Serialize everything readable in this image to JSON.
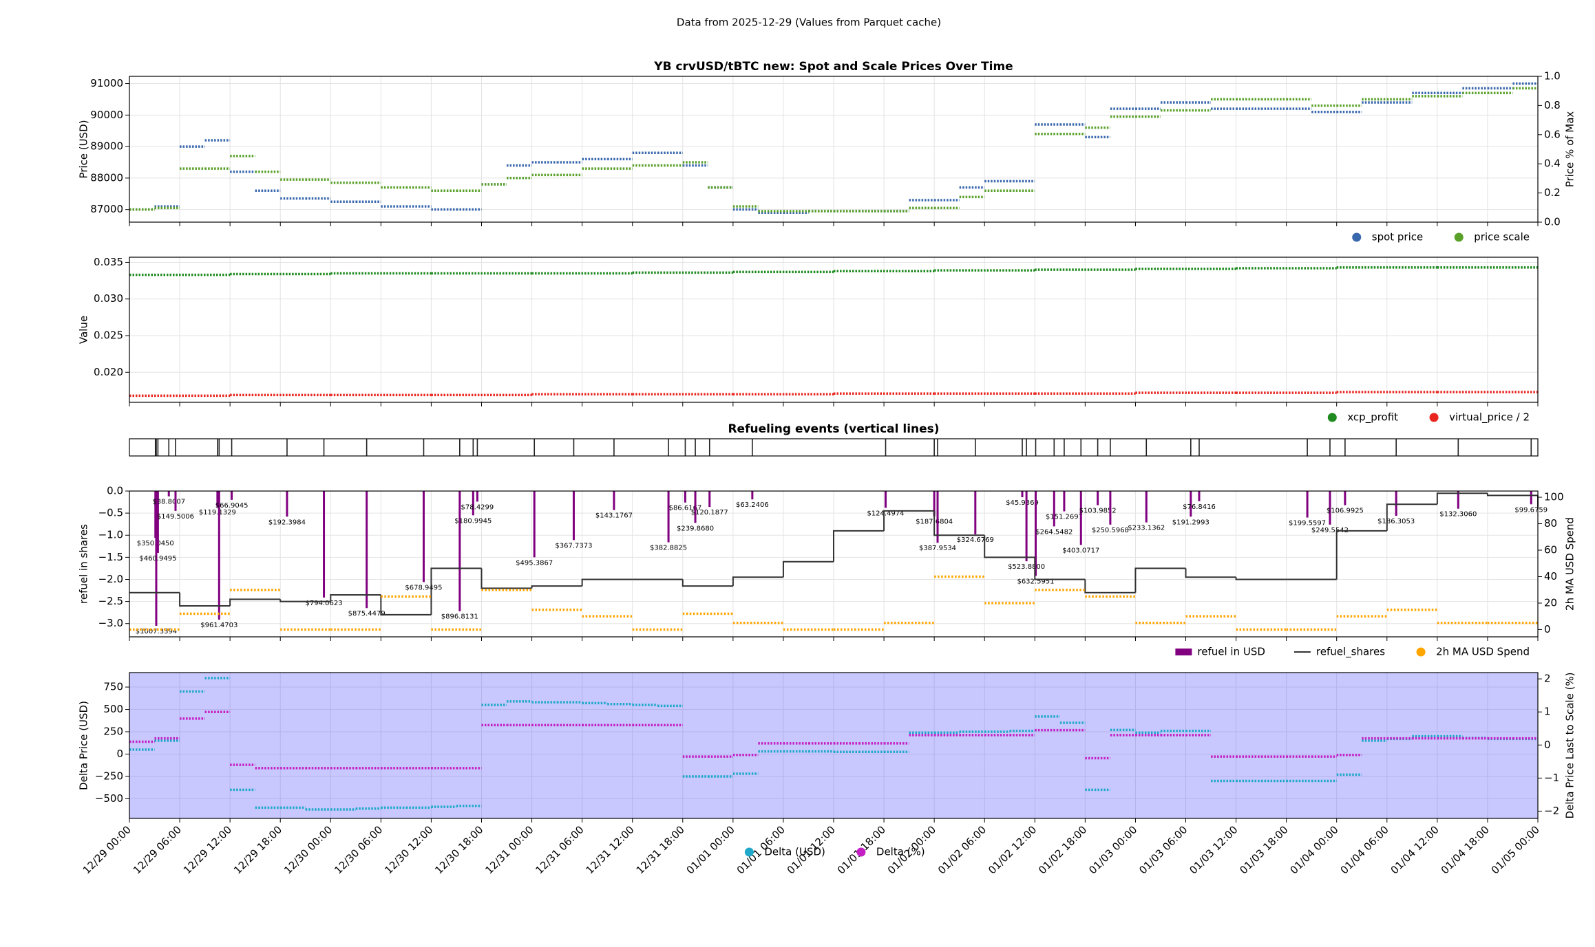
{
  "suptitle": "Data from 2025-12-29 (Values from Parquet cache)",
  "chart_data": [
    {
      "type": "scatter",
      "title": "YB crvUSD/tBTC new: Spot and Scale Prices Over Time",
      "ylabel": "Price (USD)",
      "y2label": "Price % of Max",
      "x": [
        "12/29 00:00",
        "12/29 03:00",
        "12/29 06:00",
        "12/29 09:00",
        "12/29 12:00",
        "12/29 15:00",
        "12/29 18:00",
        "12/29 21:00",
        "12/30 00:00",
        "12/30 03:00",
        "12/30 06:00",
        "12/30 09:00",
        "12/30 12:00",
        "12/30 15:00",
        "12/30 18:00",
        "12/30 21:00",
        "12/31 00:00",
        "12/31 03:00",
        "12/31 06:00",
        "12/31 09:00",
        "12/31 12:00",
        "12/31 15:00",
        "12/31 18:00",
        "12/31 21:00",
        "01/01 00:00",
        "01/01 03:00",
        "01/01 06:00",
        "01/01 09:00",
        "01/01 12:00",
        "01/01 15:00",
        "01/01 18:00",
        "01/01 21:00",
        "01/02 00:00",
        "01/02 03:00",
        "01/02 06:00",
        "01/02 09:00",
        "01/02 12:00",
        "01/02 15:00",
        "01/02 18:00",
        "01/02 21:00",
        "01/03 00:00",
        "01/03 03:00",
        "01/03 06:00",
        "01/03 09:00",
        "01/03 12:00",
        "01/03 15:00",
        "01/03 18:00",
        "01/03 21:00",
        "01/04 00:00",
        "01/04 03:00",
        "01/04 06:00",
        "01/04 09:00",
        "01/04 12:00",
        "01/04 15:00",
        "01/04 18:00",
        "01/04 21:00",
        "01/05 00:00"
      ],
      "series": [
        {
          "name": "spot price",
          "color": "#3a68ad",
          "values": [
            87000,
            87100,
            89000,
            89200,
            88200,
            87600,
            87350,
            87350,
            87250,
            87250,
            87100,
            87100,
            87000,
            87000,
            87800,
            88400,
            88500,
            88500,
            88600,
            88600,
            88800,
            88800,
            88400,
            87700,
            87000,
            86900,
            86900,
            86950,
            86950,
            86950,
            86950,
            87300,
            87300,
            87700,
            87900,
            87900,
            89700,
            89700,
            89300,
            90200,
            90200,
            90400,
            90400,
            90200,
            90200,
            90200,
            90200,
            90100,
            90100,
            90400,
            90400,
            90700,
            90700,
            90850,
            90850,
            91000,
            91000
          ]
        },
        {
          "name": "price scale",
          "color": "#5aa12b",
          "values": [
            87000,
            87050,
            88300,
            88300,
            88700,
            88200,
            87950,
            87950,
            87850,
            87850,
            87700,
            87700,
            87600,
            87600,
            87800,
            88000,
            88100,
            88100,
            88300,
            88300,
            88400,
            88400,
            88500,
            87700,
            87100,
            86950,
            86950,
            86950,
            86950,
            86950,
            86950,
            87050,
            87050,
            87400,
            87600,
            87600,
            89400,
            89400,
            89600,
            89950,
            89950,
            90150,
            90150,
            90500,
            90500,
            90500,
            90500,
            90300,
            90300,
            90500,
            90500,
            90600,
            90600,
            90700,
            90700,
            90850,
            90850
          ]
        }
      ],
      "ylim": [
        86600,
        91230
      ],
      "yticks": [
        87000,
        88000,
        89000,
        90000,
        91000
      ],
      "y2lim": [
        0,
        1
      ],
      "y2ticks": [
        {
          "value": 0,
          "label": "0.0"
        },
        0.2,
        0.4,
        0.6,
        0.8,
        {
          "value": 1,
          "label": "1.0"
        }
      ],
      "grid": true,
      "legend": "lower right"
    },
    {
      "type": "scatter",
      "ylabel": "Value",
      "x": [
        "12/29 00:00",
        "12/29 12:00",
        "12/30 00:00",
        "12/30 12:00",
        "12/31 00:00",
        "12/31 12:00",
        "01/01 00:00",
        "01/01 12:00",
        "01/02 00:00",
        "01/02 12:00",
        "01/03 00:00",
        "01/03 12:00",
        "01/04 00:00",
        "01/04 12:00",
        "01/05 00:00"
      ],
      "series": [
        {
          "name": "xcp_profit",
          "color": "#1f8a1f",
          "values": [
            0.0333,
            0.0334,
            0.0335,
            0.0335,
            0.0335,
            0.0336,
            0.0337,
            0.0338,
            0.0339,
            0.034,
            0.0341,
            0.0342,
            0.0343,
            0.0343,
            0.0344
          ]
        },
        {
          "name": "virtual_price / 2",
          "color": "#e8251f",
          "values": [
            0.0168,
            0.0169,
            0.0169,
            0.0169,
            0.017,
            0.017,
            0.017,
            0.0171,
            0.0171,
            0.0171,
            0.0172,
            0.0172,
            0.0173,
            0.0173,
            0.0174
          ]
        }
      ],
      "ylim": [
        0.0159,
        0.0357
      ],
      "yticks": [
        {
          "value": 0.02,
          "label": "0.020"
        },
        0.025,
        {
          "value": 0.03,
          "label": "0.030"
        },
        0.035
      ],
      "grid": true,
      "legend": "lower right"
    },
    {
      "type": "events",
      "title": "Refueling events (vertical lines)",
      "color": "#222222",
      "x": [
        "12/29 03:06",
        "12/29 03:12",
        "12/29 03:24",
        "12/29 04:42",
        "12/29 05:30",
        "12/29 10:30",
        "12/29 10:42",
        "12/29 12:12",
        "12/29 18:48",
        "12/29 23:12",
        "12/30 04:18",
        "12/30 11:06",
        "12/30 15:24",
        "12/30 17:00",
        "12/30 17:30",
        "12/31 00:18",
        "12/31 05:00",
        "12/31 09:48",
        "12/31 16:18",
        "12/31 18:18",
        "12/31 19:30",
        "12/31 21:12",
        "01/01 02:18",
        "01/01 18:12",
        "01/02 00:00",
        "01/02 00:24",
        "01/02 04:54",
        "01/02 10:30",
        "01/02 11:00",
        "01/02 12:06",
        "01/02 14:18",
        "01/02 15:30",
        "01/02 17:30",
        "01/02 19:30",
        "01/02 21:00",
        "01/03 01:18",
        "01/03 06:36",
        "01/03 07:36",
        "01/03 20:30",
        "01/03 23:12",
        "01/04 01:00",
        "01/04 07:06",
        "01/04 14:30",
        "01/04 23:12"
      ]
    },
    {
      "type": "bar",
      "ylabel": "refuel in shares",
      "y2label": "2h MA USD Spend",
      "y2label_color": "#ffa500",
      "series": [
        {
          "name": "refuel in USD",
          "kind": "bar",
          "color": "#800080",
          "x": [
            "12/29 03:06",
            "12/29 03:12",
            "12/29 03:24",
            "12/29 04:42",
            "12/29 05:30",
            "12/29 10:30",
            "12/29 10:42",
            "12/29 12:12",
            "12/29 18:48",
            "12/29 23:12",
            "12/30 04:18",
            "12/30 11:06",
            "12/30 15:24",
            "12/30 17:00",
            "12/30 17:30",
            "12/31 00:18",
            "12/31 05:00",
            "12/31 09:48",
            "12/31 16:18",
            "12/31 18:18",
            "12/31 19:30",
            "12/31 21:12",
            "01/01 02:18",
            "01/01 18:12",
            "01/02 00:00",
            "01/02 00:24",
            "01/02 04:54",
            "01/02 10:30",
            "01/02 11:00",
            "01/02 12:06",
            "01/02 14:18",
            "01/02 15:30",
            "01/02 17:30",
            "01/02 19:30",
            "01/02 21:00",
            "01/03 01:18",
            "01/03 06:36",
            "01/03 07:36",
            "01/03 20:30",
            "01/03 23:12",
            "01/04 01:00",
            "01/04 07:06",
            "01/04 14:30",
            "01/04 23:12"
          ],
          "values": [
            -1.06,
            -3.05,
            -1.4,
            -0.12,
            -0.45,
            -0.36,
            -2.91,
            -0.2,
            -0.58,
            -2.41,
            -2.65,
            -2.06,
            -2.72,
            -0.55,
            -0.24,
            -1.5,
            -1.11,
            -0.43,
            -1.16,
            -0.26,
            -0.72,
            -0.36,
            -0.19,
            -0.38,
            -0.57,
            -1.17,
            -0.98,
            -0.14,
            -1.59,
            -1.92,
            -0.8,
            -0.46,
            -1.22,
            -0.32,
            -0.76,
            -0.71,
            -0.58,
            -0.23,
            -0.6,
            -0.76,
            -0.32,
            -0.56,
            -0.4,
            -0.3
          ],
          "labels": [
            "$350.0450",
            "$1007.3394",
            "$460.9495",
            "$38.8007",
            "$149.5006",
            "$119.1329",
            "$961.4703",
            "$66.9045",
            "$192.3984",
            "$794.0623",
            "$875.4479",
            "$678.9495",
            "$896.8131",
            "$180.9945",
            "$78.4299",
            "$495.3867",
            "$367.7373",
            "$143.1767",
            "$382.8825",
            "$86.6167",
            "$239.8680",
            "$120.1877",
            "$63.2406",
            "$124.4974",
            "$187.6804",
            "$387.9534",
            "$324.6769",
            "$45.9369",
            "$523.8800",
            "$632.5951",
            "$264.5482",
            "$151.2697",
            "$403.0717",
            "$103.9852",
            "$250.5968",
            "$233.1362",
            "$191.2993",
            "$76.8416",
            "$199.5597",
            "$249.5542",
            "$106.9925",
            "$186.3053",
            "$132.3060",
            "$99.6759"
          ]
        },
        {
          "name": "refuel_shares",
          "kind": "line",
          "color": "#333333",
          "x": [
            "12/29 00:00",
            "12/29 06:00",
            "12/29 12:00",
            "12/29 18:00",
            "12/30 00:00",
            "12/30 06:00",
            "12/30 12:00",
            "12/30 18:00",
            "12/31 00:00",
            "12/31 06:00",
            "12/31 12:00",
            "12/31 18:00",
            "01/01 00:00",
            "01/01 06:00",
            "01/01 12:00",
            "01/01 18:00",
            "01/02 00:00",
            "01/02 06:00",
            "01/02 12:00",
            "01/02 18:00",
            "01/03 00:00",
            "01/03 06:00",
            "01/03 12:00",
            "01/03 18:00",
            "01/04 00:00",
            "01/04 06:00",
            "01/04 12:00",
            "01/04 18:00",
            "01/05 00:00"
          ],
          "values": [
            -2.3,
            -2.6,
            -2.45,
            -2.5,
            -2.35,
            -2.8,
            -1.75,
            -2.2,
            -2.15,
            -2.0,
            -2.0,
            -2.15,
            -1.95,
            -1.6,
            -0.9,
            -0.45,
            -1.0,
            -1.5,
            -2.0,
            -2.3,
            -1.75,
            -1.95,
            -2.0,
            -2.0,
            -0.9,
            -0.3,
            -0.05,
            -0.1,
            -0.4
          ]
        },
        {
          "name": "2h MA USD Spend",
          "kind": "scatter",
          "axis": "y2",
          "color": "#ffa500",
          "x": [
            "12/29 00:00",
            "12/29 06:00",
            "12/29 12:00",
            "12/29 18:00",
            "12/30 00:00",
            "12/30 06:00",
            "12/30 12:00",
            "12/30 18:00",
            "12/31 00:00",
            "12/31 06:00",
            "12/31 12:00",
            "12/31 18:00",
            "01/01 00:00",
            "01/01 06:00",
            "01/01 12:00",
            "01/01 18:00",
            "01/02 00:00",
            "01/02 06:00",
            "01/02 12:00",
            "01/02 18:00",
            "01/03 00:00",
            "01/03 06:00",
            "01/03 12:00",
            "01/03 18:00",
            "01/04 00:00",
            "01/04 06:00",
            "01/04 12:00",
            "01/04 18:00",
            "01/05 00:00"
          ],
          "values": [
            0,
            12,
            30,
            0,
            0,
            25,
            0,
            30,
            15,
            10,
            0,
            12,
            5,
            0,
            0,
            5,
            40,
            20,
            30,
            25,
            5,
            10,
            0,
            0,
            10,
            15,
            5,
            5,
            5
          ]
        }
      ],
      "ylim": [
        -3.3,
        0
      ],
      "yticks": [
        {
          "value": 0,
          "label": "0.0"
        },
        {
          "value": -0.5,
          "label": "−0.5"
        },
        {
          "value": -1,
          "label": "−1.0"
        },
        {
          "value": -1.5,
          "label": "−1.5"
        },
        {
          "value": -2,
          "label": "−2.0"
        },
        {
          "value": -2.5,
          "label": "−2.5"
        },
        {
          "value": -3,
          "label": "−3.0"
        }
      ],
      "y2lim": [
        -5.5,
        104.7
      ],
      "y2ticks": [
        0,
        20,
        40,
        60,
        80,
        100
      ],
      "grid": true,
      "legend": "lower right"
    },
    {
      "type": "scatter",
      "ylabel": "Delta Price (USD)",
      "y2label": "Delta Price Last to Scale (%)",
      "ylabel_color": "#1fa8c9",
      "y2label_color": "#c41fc4",
      "background": "#c8c8ff",
      "x": [
        "12/29 00:00",
        "12/29 03:00",
        "12/29 06:00",
        "12/29 09:00",
        "12/29 12:00",
        "12/29 15:00",
        "12/29 18:00",
        "12/29 21:00",
        "12/30 00:00",
        "12/30 03:00",
        "12/30 06:00",
        "12/30 09:00",
        "12/30 12:00",
        "12/30 15:00",
        "12/30 18:00",
        "12/30 21:00",
        "12/31 00:00",
        "12/31 03:00",
        "12/31 06:00",
        "12/31 09:00",
        "12/31 12:00",
        "12/31 15:00",
        "12/31 18:00",
        "12/31 21:00",
        "01/01 00:00",
        "01/01 03:00",
        "01/01 06:00",
        "01/01 09:00",
        "01/01 12:00",
        "01/01 15:00",
        "01/01 18:00",
        "01/01 21:00",
        "01/02 00:00",
        "01/02 03:00",
        "01/02 06:00",
        "01/02 09:00",
        "01/02 12:00",
        "01/02 15:00",
        "01/02 18:00",
        "01/02 21:00",
        "01/03 00:00",
        "01/03 03:00",
        "01/03 06:00",
        "01/03 09:00",
        "01/03 12:00",
        "01/03 15:00",
        "01/03 18:00",
        "01/03 21:00",
        "01/04 00:00",
        "01/04 03:00",
        "01/04 06:00",
        "01/04 09:00",
        "01/04 12:00",
        "01/04 15:00",
        "01/04 18:00",
        "01/04 21:00",
        "01/05 00:00"
      ],
      "series": [
        {
          "name": "Delta (USD)",
          "color": "#1fa8c9",
          "values": [
            50,
            150,
            700,
            850,
            -400,
            -600,
            -600,
            -620,
            -620,
            -610,
            -600,
            -600,
            -590,
            -580,
            550,
            590,
            580,
            580,
            570,
            560,
            550,
            540,
            -250,
            -250,
            -220,
            30,
            30,
            30,
            25,
            25,
            25,
            240,
            240,
            250,
            250,
            260,
            420,
            350,
            -400,
            270,
            240,
            260,
            260,
            -300,
            -300,
            -300,
            -300,
            -300,
            -230,
            150,
            170,
            200,
            200,
            180,
            170,
            170,
            170
          ]
        },
        {
          "name": "Delta (%)",
          "color": "#c41fc4",
          "axis": "y2",
          "values": [
            0.1,
            0.2,
            0.8,
            1.0,
            -0.6,
            -0.7,
            -0.7,
            -0.7,
            -0.7,
            -0.7,
            -0.7,
            -0.7,
            -0.7,
            -0.7,
            0.6,
            0.6,
            0.6,
            0.6,
            0.6,
            0.6,
            0.6,
            0.6,
            -0.35,
            -0.35,
            -0.3,
            0.05,
            0.05,
            0.05,
            0.05,
            0.05,
            0.05,
            0.3,
            0.3,
            0.3,
            0.3,
            0.3,
            0.45,
            0.45,
            -0.4,
            0.3,
            0.3,
            0.3,
            0.3,
            -0.35,
            -0.35,
            -0.35,
            -0.35,
            -0.35,
            -0.3,
            0.2,
            0.2,
            0.2,
            0.2,
            0.2,
            0.2,
            0.2,
            0.2
          ]
        }
      ],
      "ylim": [
        -720,
        912
      ],
      "yticks": [
        {
          "value": -500,
          "label": "−500"
        },
        {
          "value": -250,
          "label": "−250"
        },
        0,
        250,
        500,
        750
      ],
      "y2lim": [
        -2.22,
        2.19
      ],
      "y2ticks": [
        {
          "value": -2,
          "label": "−2"
        },
        {
          "value": -1,
          "label": "−1"
        },
        0,
        1,
        2
      ],
      "xlim": [
        "12/29 00:00",
        "01/05 00:00"
      ],
      "xticks": [
        "12/29 00:00",
        "12/29 06:00",
        "12/29 12:00",
        "12/29 18:00",
        "12/30 00:00",
        "12/30 06:00",
        "12/30 12:00",
        "12/30 18:00",
        "12/31 00:00",
        "12/31 06:00",
        "12/31 12:00",
        "12/31 18:00",
        "01/01 00:00",
        "01/01 06:00",
        "01/01 12:00",
        "01/01 18:00",
        "01/02 00:00",
        "01/02 06:00",
        "01/02 12:00",
        "01/02 18:00",
        "01/03 00:00",
        "01/03 06:00",
        "01/03 12:00",
        "01/03 18:00",
        "01/04 00:00",
        "01/04 06:00",
        "01/04 12:00",
        "01/04 18:00",
        "01/05 00:00"
      ],
      "grid": true,
      "legend": "lower center"
    }
  ]
}
